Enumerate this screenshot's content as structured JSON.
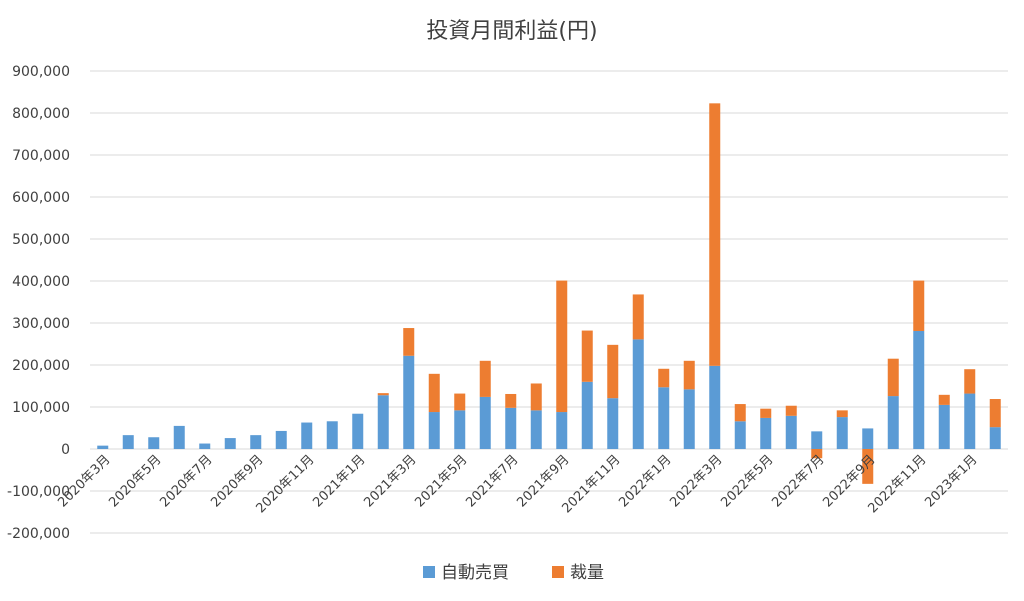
{
  "chart_data": {
    "type": "bar",
    "stacked": true,
    "title": "投資月間利益(円)",
    "xlabel": "",
    "ylabel": "",
    "ylim": [
      -200000,
      900000
    ],
    "yticks": [
      900000,
      800000,
      700000,
      600000,
      500000,
      400000,
      300000,
      200000,
      100000,
      0,
      -100000,
      -200000
    ],
    "ytick_labels": [
      "900,000",
      "800,000",
      "700,000",
      "600,000",
      "500,000",
      "400,000",
      "300,000",
      "200,000",
      "100,000",
      "0",
      "-100,000",
      "-200,000"
    ],
    "grid": true,
    "legend_position": "bottom",
    "categories": [
      "2020年3月",
      "2020年4月",
      "2020年5月",
      "2020年6月",
      "2020年7月",
      "2020年8月",
      "2020年9月",
      "2020年10月",
      "2020年11月",
      "2020年12月",
      "2021年1月",
      "2021年2月",
      "2021年3月",
      "2021年4月",
      "2021年5月",
      "2021年6月",
      "2021年7月",
      "2021年8月",
      "2021年9月",
      "2021年10月",
      "2021年11月",
      "2021年12月",
      "2022年1月",
      "2022年2月",
      "2022年3月",
      "2022年4月",
      "2022年5月",
      "2022年6月",
      "2022年7月",
      "2022年8月",
      "2022年9月",
      "2022年10月",
      "2022年11月",
      "2022年12月",
      "2023年1月",
      "2023年2月"
    ],
    "x_tick_labels": [
      "2020年3月",
      "2020年5月",
      "2020年7月",
      "2020年9月",
      "2020年11月",
      "2021年1月",
      "2021年3月",
      "2021年5月",
      "2021年7月",
      "2021年9月",
      "2021年11月",
      "2022年1月",
      "2022年3月",
      "2022年5月",
      "2022年7月",
      "2022年9月",
      "2022年11月",
      "2023年1月"
    ],
    "series": [
      {
        "name": "自動売買",
        "color": "#5b9bd5",
        "values": [
          8000,
          33000,
          28000,
          55000,
          13000,
          26000,
          33000,
          43000,
          63000,
          66000,
          84000,
          128000,
          222000,
          88000,
          92000,
          124000,
          98000,
          92000,
          88000,
          160000,
          121000,
          261000,
          147000,
          142000,
          198000,
          66000,
          74000,
          79000,
          42000,
          76000,
          49000,
          126000,
          281000,
          105000,
          132000,
          52000
        ]
      },
      {
        "name": "裁量",
        "color": "#ed7d31",
        "values": [
          0,
          0,
          0,
          0,
          0,
          0,
          0,
          0,
          0,
          0,
          0,
          5000,
          66000,
          91000,
          40000,
          86000,
          33000,
          64000,
          313000,
          122000,
          127000,
          107000,
          44000,
          68000,
          625000,
          41000,
          22000,
          24000,
          -22000,
          16000,
          -83000,
          89000,
          120000,
          24000,
          58000,
          67000
        ]
      }
    ]
  }
}
